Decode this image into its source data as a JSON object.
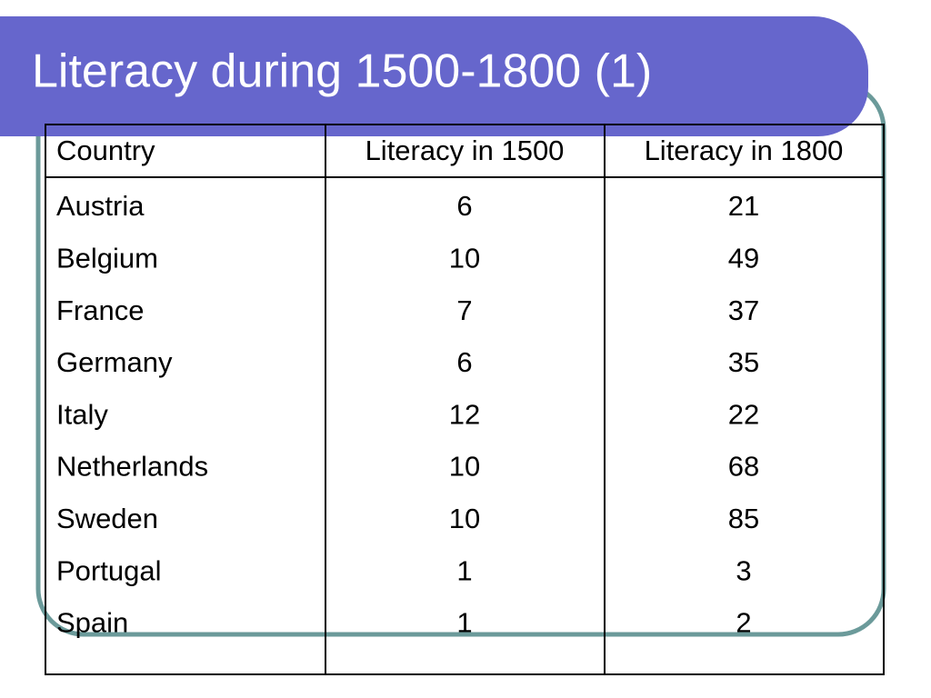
{
  "title": "Literacy during 1500-1800 (1)",
  "table": {
    "header": [
      "Country",
      "Literacy in 1500",
      "Literacy in 1800"
    ],
    "rows": [
      [
        "Austria",
        6,
        21
      ],
      [
        "Belgium",
        10,
        49
      ],
      [
        "France",
        7,
        37
      ],
      [
        "Germany",
        6,
        35
      ],
      [
        "Italy",
        12,
        22
      ],
      [
        "Netherlands",
        10,
        68
      ],
      [
        "Sweden",
        10,
        85
      ],
      [
        "Portugal",
        1,
        3
      ],
      [
        "Spain",
        1,
        2
      ]
    ]
  }
}
